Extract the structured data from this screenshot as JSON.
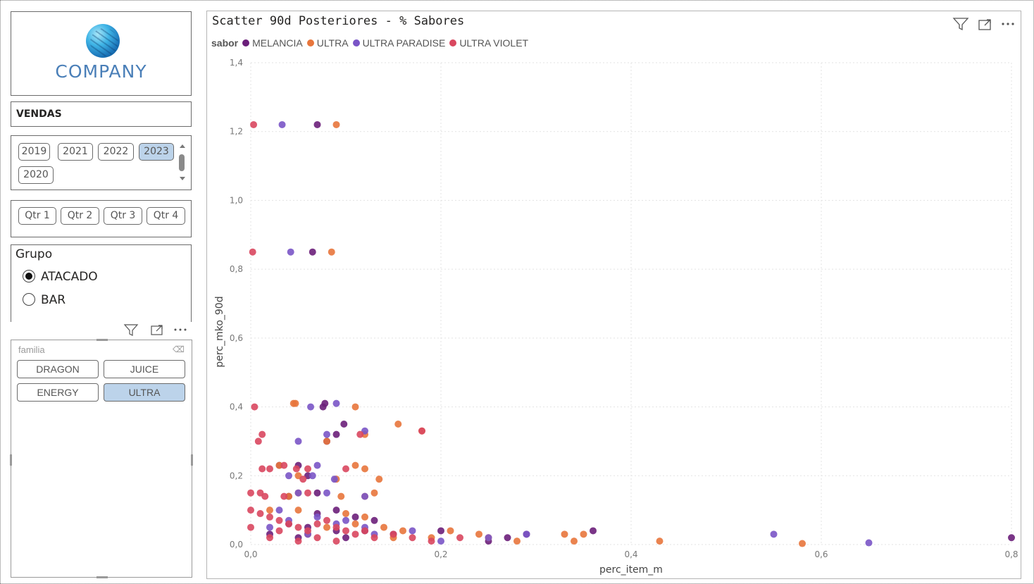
{
  "logo": {
    "text": "COMPANY"
  },
  "page_selector": {
    "label": "VENDAS"
  },
  "year_slicer": {
    "options": [
      "2019",
      "2021",
      "2022",
      "2023",
      "2020"
    ],
    "selected": "2023"
  },
  "quarter_slicer": {
    "options": [
      "Qtr 1",
      "Qtr 2",
      "Qtr 3",
      "Qtr 4"
    ]
  },
  "grupo_slicer": {
    "title": "Grupo",
    "options": [
      {
        "label": "ATACADO",
        "selected": true
      },
      {
        "label": "BAR",
        "selected": false
      }
    ]
  },
  "familia_slicer": {
    "placeholder": "familia",
    "options": [
      "DRAGON",
      "JUICE",
      "ENERGY",
      "ULTRA"
    ],
    "selected": "ULTRA"
  },
  "visual_header_icons": [
    "filter-icon",
    "focus-mode-icon",
    "more-options-icon"
  ],
  "chart_data": {
    "type": "scatter",
    "title": "Scatter 90d Posteriores - % Sabores",
    "legend_title": "sabor",
    "legend_position": "top-left",
    "xlabel": "perc_item_m",
    "ylabel": "perc_mko_90d",
    "xlim": [
      0,
      0.8
    ],
    "ylim": [
      0,
      1.4
    ],
    "xticks": [
      "0,0",
      "0,2",
      "0,4",
      "0,6",
      "0,8"
    ],
    "yticks": [
      "0,0",
      "0,2",
      "0,4",
      "0,6",
      "0,8",
      "1,0",
      "1,2",
      "1,4"
    ],
    "grid": true,
    "series": [
      {
        "name": "MELANCIA",
        "color": "#6b1f7a",
        "points": [
          [
            0.07,
            1.22
          ],
          [
            0.065,
            0.85
          ],
          [
            0.078,
            0.41
          ],
          [
            0.076,
            0.4
          ],
          [
            0.098,
            0.35
          ],
          [
            0.09,
            0.32
          ],
          [
            0.08,
            0.3
          ],
          [
            0.03,
            0.23
          ],
          [
            0.05,
            0.23
          ],
          [
            0.06,
            0.2
          ],
          [
            0.07,
            0.15
          ],
          [
            0.04,
            0.14
          ],
          [
            0.09,
            0.1
          ],
          [
            0.07,
            0.09
          ],
          [
            0.11,
            0.08
          ],
          [
            0.13,
            0.07
          ],
          [
            0.04,
            0.06
          ],
          [
            0.06,
            0.05
          ],
          [
            0.09,
            0.04
          ],
          [
            0.12,
            0.04
          ],
          [
            0.2,
            0.04
          ],
          [
            0.27,
            0.02
          ],
          [
            0.36,
            0.04
          ],
          [
            0.29,
            0.03
          ],
          [
            0.8,
            0.02
          ],
          [
            0.02,
            0.03
          ],
          [
            0.05,
            0.02
          ],
          [
            0.1,
            0.02
          ],
          [
            0.15,
            0.03
          ],
          [
            0.25,
            0.01
          ]
        ]
      },
      {
        "name": "ULTRA",
        "color": "#e8763c",
        "points": [
          [
            0.09,
            1.22
          ],
          [
            0.085,
            0.85
          ],
          [
            0.045,
            0.41
          ],
          [
            0.047,
            0.41
          ],
          [
            0.11,
            0.4
          ],
          [
            0.155,
            0.35
          ],
          [
            0.18,
            0.33
          ],
          [
            0.12,
            0.32
          ],
          [
            0.08,
            0.3
          ],
          [
            0.03,
            0.23
          ],
          [
            0.11,
            0.23
          ],
          [
            0.12,
            0.22
          ],
          [
            0.05,
            0.2
          ],
          [
            0.135,
            0.19
          ],
          [
            0.09,
            0.19
          ],
          [
            0.05,
            0.15
          ],
          [
            0.13,
            0.15
          ],
          [
            0.095,
            0.14
          ],
          [
            0.04,
            0.14
          ],
          [
            0.12,
            0.14
          ],
          [
            0.02,
            0.1
          ],
          [
            0.05,
            0.1
          ],
          [
            0.1,
            0.09
          ],
          [
            0.12,
            0.08
          ],
          [
            0.14,
            0.05
          ],
          [
            0.16,
            0.04
          ],
          [
            0.21,
            0.04
          ],
          [
            0.24,
            0.03
          ],
          [
            0.25,
            0.02
          ],
          [
            0.28,
            0.01
          ],
          [
            0.33,
            0.03
          ],
          [
            0.34,
            0.01
          ],
          [
            0.35,
            0.03
          ],
          [
            0.43,
            0.01
          ],
          [
            0.58,
            0.003
          ],
          [
            0.06,
            0.03
          ],
          [
            0.08,
            0.05
          ],
          [
            0.11,
            0.06
          ],
          [
            0.15,
            0.02
          ],
          [
            0.19,
            0.02
          ]
        ]
      },
      {
        "name": "ULTRA PARADISE",
        "color": "#7a55c7",
        "points": [
          [
            0.033,
            1.22
          ],
          [
            0.042,
            0.85
          ],
          [
            0.063,
            0.4
          ],
          [
            0.09,
            0.41
          ],
          [
            0.12,
            0.33
          ],
          [
            0.08,
            0.32
          ],
          [
            0.05,
            0.3
          ],
          [
            0.04,
            0.2
          ],
          [
            0.07,
            0.23
          ],
          [
            0.065,
            0.2
          ],
          [
            0.088,
            0.19
          ],
          [
            0.05,
            0.15
          ],
          [
            0.08,
            0.15
          ],
          [
            0.12,
            0.14
          ],
          [
            0.03,
            0.1
          ],
          [
            0.07,
            0.08
          ],
          [
            0.09,
            0.06
          ],
          [
            0.12,
            0.05
          ],
          [
            0.17,
            0.04
          ],
          [
            0.29,
            0.03
          ],
          [
            0.25,
            0.02
          ],
          [
            0.55,
            0.03
          ],
          [
            0.65,
            0.005
          ],
          [
            0.02,
            0.05
          ],
          [
            0.04,
            0.07
          ],
          [
            0.06,
            0.03
          ],
          [
            0.1,
            0.07
          ],
          [
            0.13,
            0.03
          ],
          [
            0.2,
            0.01
          ]
        ]
      },
      {
        "name": "ULTRA VIOLET",
        "color": "#d9475f",
        "points": [
          [
            0.003,
            1.22
          ],
          [
            0.002,
            0.85
          ],
          [
            0.004,
            0.4
          ],
          [
            0.012,
            0.32
          ],
          [
            0.008,
            0.3
          ],
          [
            0.012,
            0.22
          ],
          [
            0.02,
            0.22
          ],
          [
            0.035,
            0.23
          ],
          [
            0.048,
            0.22
          ],
          [
            0.06,
            0.22
          ],
          [
            0.1,
            0.22
          ],
          [
            0.115,
            0.32
          ],
          [
            0.18,
            0.33
          ],
          [
            0.055,
            0.19
          ],
          [
            0.01,
            0.15
          ],
          [
            0.015,
            0.14
          ],
          [
            0.035,
            0.14
          ],
          [
            0.06,
            0.15
          ],
          [
            0.0,
            0.15
          ],
          [
            0.0,
            0.1
          ],
          [
            0.01,
            0.09
          ],
          [
            0.02,
            0.08
          ],
          [
            0.03,
            0.07
          ],
          [
            0.04,
            0.06
          ],
          [
            0.05,
            0.05
          ],
          [
            0.06,
            0.04
          ],
          [
            0.07,
            0.06
          ],
          [
            0.08,
            0.07
          ],
          [
            0.09,
            0.05
          ],
          [
            0.1,
            0.04
          ],
          [
            0.11,
            0.03
          ],
          [
            0.12,
            0.04
          ],
          [
            0.13,
            0.02
          ],
          [
            0.15,
            0.03
          ],
          [
            0.17,
            0.02
          ],
          [
            0.19,
            0.01
          ],
          [
            0.22,
            0.02
          ],
          [
            0.0,
            0.05
          ],
          [
            0.02,
            0.02
          ],
          [
            0.03,
            0.04
          ],
          [
            0.05,
            0.01
          ],
          [
            0.07,
            0.02
          ],
          [
            0.09,
            0.01
          ]
        ]
      }
    ]
  }
}
